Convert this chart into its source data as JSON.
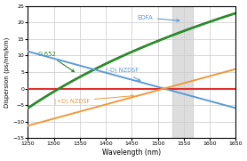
{
  "title": "",
  "xlabel": "Wavelength (nm)",
  "ylabel": "Dispersion (ps/nm/km)",
  "xlim": [
    1250,
    1650
  ],
  "ylim": [
    -15,
    25
  ],
  "xticks": [
    1250,
    1300,
    1350,
    1400,
    1450,
    1500,
    1550,
    1600,
    1650
  ],
  "yticks": [
    -15,
    -10,
    -5,
    0,
    5,
    10,
    15,
    20,
    25
  ],
  "g652_color": "#2a8a2a",
  "nzdsf_neg_color": "#5b9bd5",
  "nzdsf_pos_color": "#ed9a3b",
  "zero_line_color": "#e03030",
  "edfa_band_color": "#cccccc",
  "edfa_band_x1": 1528,
  "edfa_band_x2": 1568,
  "label_g652": "G.652",
  "label_nzdsf_neg": "(-D) NZDSF",
  "label_nzdsf_pos": "(+D) NZDSF",
  "label_edfa": "EDFA",
  "bg_color": "#ffffff",
  "grid_color": "#c8c8c8",
  "g652_zero": 1310,
  "g652_slope": 0.092,
  "g652_curve": 0.00032,
  "nzdsf_zero": 1512,
  "nzdsf_slope": 0.043
}
